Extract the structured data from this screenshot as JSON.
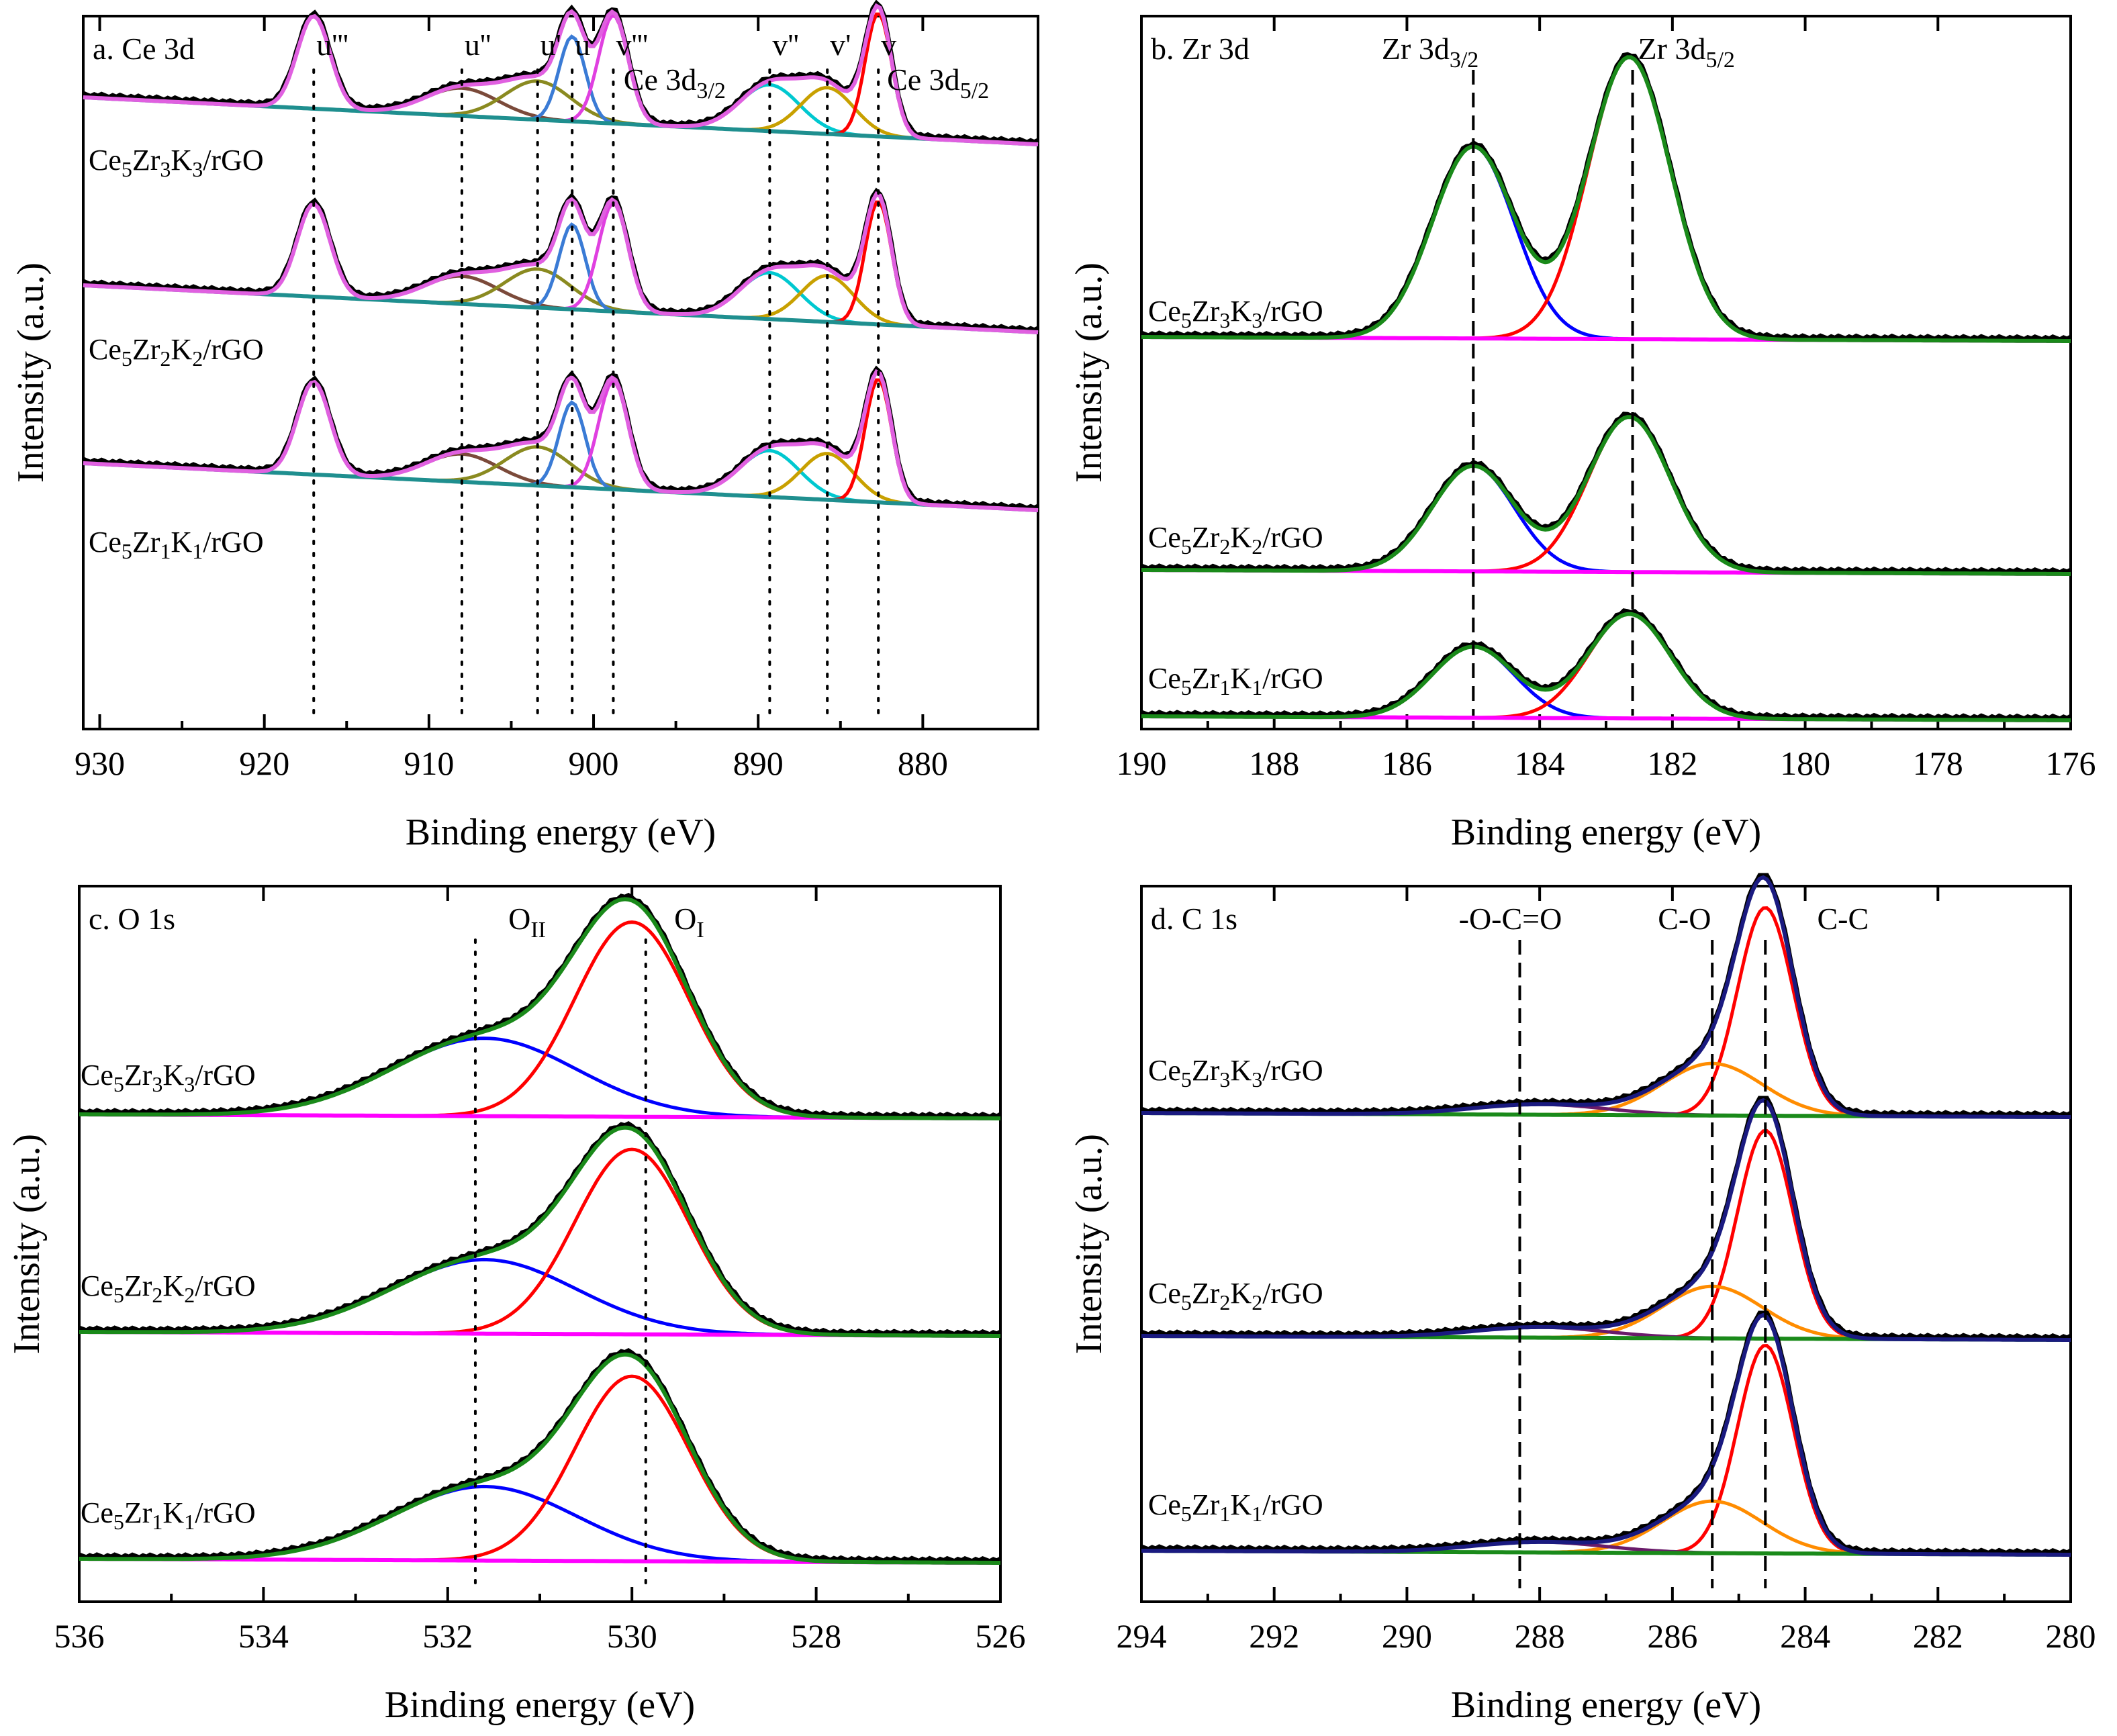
{
  "figure_description_items": [
    "a",
    "b",
    "c",
    "d"
  ],
  "chart_data": [
    {
      "id": "a",
      "type": "line",
      "title": "a. Ce 3d",
      "xlabel": "Binding energy (eV)",
      "ylabel": "Intensity (a.u.)",
      "xlim": [
        931,
        873
      ],
      "xticks": [
        930,
        920,
        910,
        900,
        890,
        880
      ],
      "ref_style": "dotted",
      "references": [
        {
          "x": 917.0,
          "label": "u'''"
        },
        {
          "x": 908.0,
          "label": "u''"
        },
        {
          "x": 903.4,
          "label": "u'"
        },
        {
          "x": 901.3,
          "label": "u"
        },
        {
          "x": 898.8,
          "label": "v'''"
        },
        {
          "x": 889.3,
          "label": "v''"
        },
        {
          "x": 885.8,
          "label": "v'"
        },
        {
          "x": 882.7,
          "label": "v"
        }
      ],
      "annotations": [
        {
          "base": "Ce 3d",
          "sub": "3/2",
          "x": 898.5
        },
        {
          "base": "Ce 3d",
          "sub": "5/2",
          "x": 882.5
        }
      ],
      "samples": [
        {
          "name": "Ce5Zr3K3/rGO",
          "parts": [
            "Ce",
            "5",
            "Zr",
            "3",
            "K",
            "3",
            "/rGO"
          ]
        },
        {
          "name": "Ce5Zr2K2/rGO",
          "parts": [
            "Ce",
            "5",
            "Zr",
            "2",
            "K",
            "2",
            "/rGO"
          ]
        },
        {
          "name": "Ce5Zr1K1/rGO",
          "parts": [
            "Ce",
            "5",
            "Zr",
            "1",
            "K",
            "1",
            "/rGO"
          ]
        }
      ],
      "components": [
        {
          "name": "u'''",
          "center": 917.0,
          "height": 0.6,
          "width": 1.0,
          "color": "#c86bd0"
        },
        {
          "name": "u''",
          "center": 908.0,
          "height": 0.18,
          "width": 2.2,
          "color": "#7b4a3a"
        },
        {
          "name": "u'",
          "center": 903.4,
          "height": 0.25,
          "width": 2.0,
          "color": "#8a8a20"
        },
        {
          "name": "u",
          "center": 901.3,
          "height": 0.55,
          "width": 0.8,
          "color": "#3a7bd5"
        },
        {
          "name": "v'''",
          "center": 898.8,
          "height": 0.7,
          "width": 0.9,
          "color": "#e040e0"
        },
        {
          "name": "v''",
          "center": 889.3,
          "height": 0.3,
          "width": 1.8,
          "color": "#00c8d0"
        },
        {
          "name": "v'",
          "center": 885.8,
          "height": 0.3,
          "width": 1.6,
          "color": "#c8a000"
        },
        {
          "name": "v",
          "center": 882.7,
          "height": 0.8,
          "width": 0.8,
          "color": "#ff0000"
        }
      ],
      "curve_colors": {
        "raw": "#000000",
        "background": "#1f8f8f",
        "envelope": "#e060e0"
      }
    },
    {
      "id": "b",
      "type": "line",
      "title": "b. Zr 3d",
      "xlabel": "Binding energy (eV)",
      "ylabel": "Intensity (a.u.)",
      "xlim": [
        190,
        176
      ],
      "xticks": [
        190,
        188,
        186,
        184,
        182,
        180,
        178,
        176
      ],
      "ref_style": "dashed",
      "references": [
        {
          "x": 185.0,
          "label": ""
        },
        {
          "x": 182.6,
          "label": ""
        }
      ],
      "annotations": [
        {
          "base": "Zr 3d",
          "sub": "3/2",
          "x": 185.0
        },
        {
          "base": "Zr 3d",
          "sub": "5/2",
          "x": 182.6
        }
      ],
      "samples": [
        {
          "name": "Ce5Zr3K3/rGO",
          "parts": [
            "Ce",
            "5",
            "Zr",
            "3",
            "K",
            "3",
            "/rGO"
          ]
        },
        {
          "name": "Ce5Zr2K2/rGO",
          "parts": [
            "Ce",
            "5",
            "Zr",
            "2",
            "K",
            "2",
            "/rGO"
          ]
        },
        {
          "name": "Ce5Zr1K1/rGO",
          "parts": [
            "Ce",
            "5",
            "Zr",
            "1",
            "K",
            "1",
            "/rGO"
          ]
        }
      ],
      "components": [
        {
          "name": "Zr 3d3/2",
          "center": 185.0,
          "height": 0.68,
          "width": 0.62,
          "color": "#0000ff"
        },
        {
          "name": "Zr 3d5/2",
          "center": 182.65,
          "height": 1.0,
          "width": 0.62,
          "color": "#ff0000"
        }
      ],
      "sample_scale": [
        1.0,
        0.55,
        0.37
      ],
      "curve_colors": {
        "raw": "#000000",
        "background": "#ff00ff",
        "envelope": "#1a8a1a"
      }
    },
    {
      "id": "c",
      "type": "line",
      "title": "c. O 1s",
      "xlabel": "Binding energy (eV)",
      "ylabel": "Intensity (a.u.)",
      "xlim": [
        536,
        526
      ],
      "xticks": [
        536,
        534,
        532,
        530,
        528,
        526
      ],
      "ref_style": "dotted",
      "references": [
        {
          "x": 531.7,
          "label": ""
        },
        {
          "x": 529.85,
          "label": ""
        }
      ],
      "annotations": [
        {
          "base": "O",
          "sub": "II",
          "x": 531.4
        },
        {
          "base": "O",
          "sub": "I",
          "x": 529.6
        }
      ],
      "samples": [
        {
          "name": "Ce5Zr3K3/rGO",
          "parts": [
            "Ce",
            "5",
            "Zr",
            "3",
            "K",
            "3",
            "/rGO"
          ]
        },
        {
          "name": "Ce5Zr2K2/rGO",
          "parts": [
            "Ce",
            "5",
            "Zr",
            "2",
            "K",
            "2",
            "/rGO"
          ]
        },
        {
          "name": "Ce5Zr1K1/rGO",
          "parts": [
            "Ce",
            "5",
            "Zr",
            "1",
            "K",
            "1",
            "/rGO"
          ]
        }
      ],
      "components": [
        {
          "name": "OII",
          "center": 531.6,
          "height": 0.4,
          "width": 1.0,
          "color": "#0000ff"
        },
        {
          "name": "OI",
          "center": 530.0,
          "height": 1.0,
          "width": 0.62,
          "color": "#ff0000"
        }
      ],
      "sample_scale": [
        1.0,
        0.95,
        0.95
      ],
      "curve_colors": {
        "raw": "#000000",
        "background": "#ff00ff",
        "envelope": "#1a8a1a"
      }
    },
    {
      "id": "d",
      "type": "line",
      "title": "d. C 1s",
      "xlabel": "Binding energy (eV)",
      "ylabel": "Intensity (a.u.)",
      "xlim": [
        294,
        280
      ],
      "xticks": [
        294,
        292,
        290,
        288,
        286,
        284,
        282,
        280
      ],
      "ref_style": "dashed",
      "references": [
        {
          "x": 288.3,
          "label": ""
        },
        {
          "x": 285.4,
          "label": ""
        },
        {
          "x": 284.6,
          "label": ""
        }
      ],
      "annotations": [
        {
          "base": "-O-C=O",
          "sub": "",
          "x": 289.3
        },
        {
          "base": "C-O",
          "sub": "",
          "x": 286.3
        },
        {
          "base": "C-C",
          "sub": "",
          "x": 283.9
        }
      ],
      "samples": [
        {
          "name": "Ce5Zr3K3/rGO",
          "parts": [
            "Ce",
            "5",
            "Zr",
            "3",
            "K",
            "3",
            "/rGO"
          ]
        },
        {
          "name": "Ce5Zr2K2/rGO",
          "parts": [
            "Ce",
            "5",
            "Zr",
            "2",
            "K",
            "2",
            "/rGO"
          ]
        },
        {
          "name": "Ce5Zr1K1/rGO",
          "parts": [
            "Ce",
            "5",
            "Zr",
            "1",
            "K",
            "1",
            "/rGO"
          ]
        }
      ],
      "components": [
        {
          "name": "C-C",
          "center": 284.6,
          "height": 1.0,
          "width": 0.42,
          "color": "#ff0000"
        },
        {
          "name": "C-O",
          "center": 285.4,
          "height": 0.25,
          "width": 0.75,
          "color": "#ff8c00"
        },
        {
          "name": "-O-C=O",
          "center": 288.0,
          "height": 0.05,
          "width": 1.0,
          "color": "#6a1b6a"
        }
      ],
      "sample_scale": [
        1.0,
        1.0,
        1.0
      ],
      "curve_colors": {
        "raw": "#000000",
        "background": "#1a8a1a",
        "envelope": "#1a1a80"
      }
    }
  ]
}
